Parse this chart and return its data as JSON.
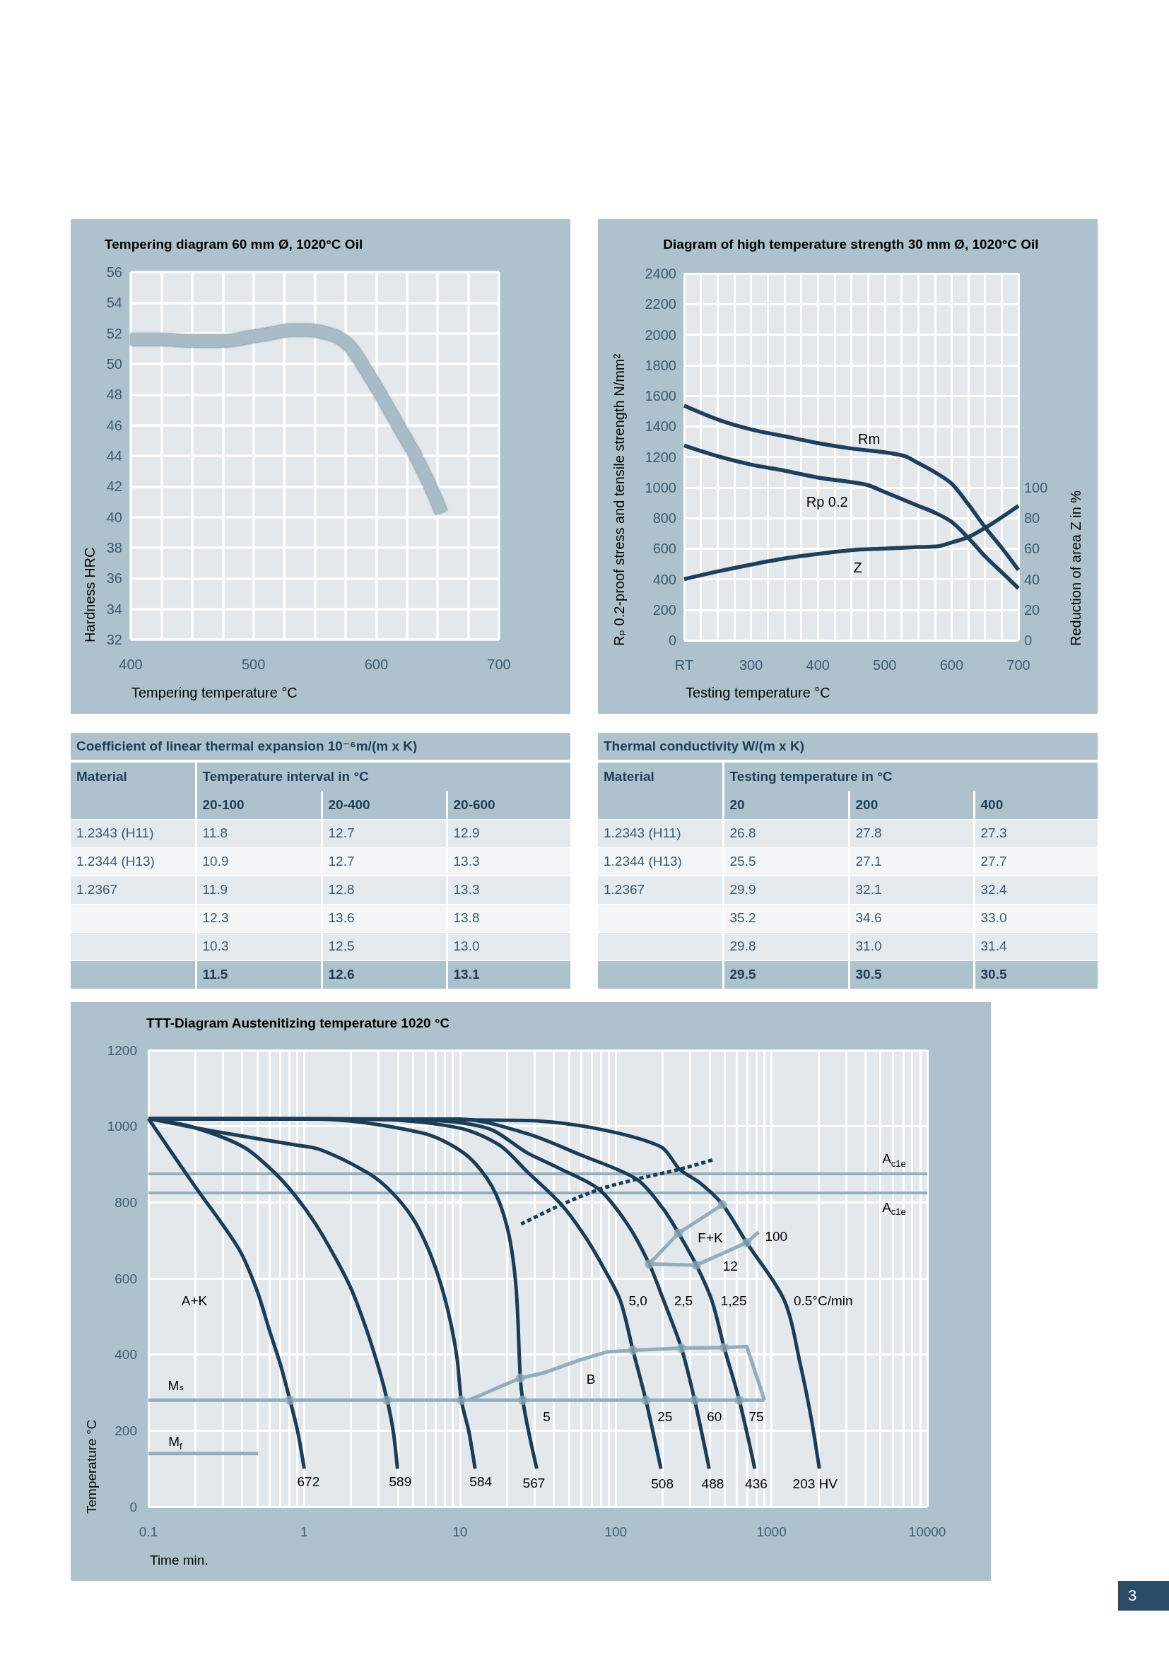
{
  "chart_data": [
    {
      "type": "line",
      "title": "Tempering diagram 60 mm Ø, 1020°C Oil",
      "xlabel": "Tempering temperature °C",
      "ylabel": "Hardness HRC",
      "x": [
        400,
        425,
        450,
        475,
        500,
        515,
        530,
        545,
        560,
        570,
        580,
        590,
        600,
        610,
        620,
        630,
        640,
        648,
        653
      ],
      "series": [
        {
          "color": "#a8bbc7",
          "values": [
            51.6,
            51.6,
            51.5,
            51.5,
            51.8,
            52.0,
            52.2,
            52.2,
            52.0,
            51.7,
            51.0,
            49.8,
            48.5,
            47.1,
            45.7,
            44.3,
            42.7,
            41.3,
            40.3
          ]
        }
      ],
      "xlim": [
        400,
        700
      ],
      "xticks": [
        400,
        {
          "value": 425,
          "label": null
        },
        {
          "value": 450,
          "label": null
        },
        {
          "value": 475,
          "label": null
        },
        500,
        {
          "value": 525,
          "label": null
        },
        {
          "value": 550,
          "label": null
        },
        {
          "value": 575,
          "label": null
        },
        600,
        {
          "value": 625,
          "label": null
        },
        {
          "value": 650,
          "label": null
        },
        {
          "value": 675,
          "label": null
        },
        700
      ],
      "ylim": [
        32,
        56
      ],
      "yticks": [
        32,
        34,
        36,
        38,
        40,
        42,
        44,
        46,
        48,
        50,
        52,
        54,
        56
      ],
      "grid": true,
      "marker": "none"
    },
    {
      "type": "line",
      "title": "Diagram of high temperature strength 30 mm Ø, 1020°C Oil",
      "xlabel": "Testing temperature °C",
      "ylabel": "Rₚ 0.2-proof stress and tensile strength N/mm²",
      "y2label": "Reduction of area Z in %",
      "series": [
        {
          "name": "Rm",
          "color": "#1f3f5a",
          "x": [
            200,
            250,
            300,
            350,
            400,
            450,
            500,
            530,
            550,
            575,
            600,
            625,
            650,
            675,
            700
          ],
          "values": [
            1535,
            1445,
            1380,
            1335,
            1290,
            1255,
            1230,
            1205,
            1160,
            1100,
            1025,
            890,
            740,
            605,
            460
          ]
        },
        {
          "name": "Rp 0.2",
          "color": "#1f3f5a",
          "x": [
            200,
            250,
            300,
            350,
            400,
            450,
            475,
            500,
            550,
            575,
            600,
            625,
            650,
            675,
            700
          ],
          "values": [
            1275,
            1205,
            1150,
            1110,
            1065,
            1035,
            1015,
            970,
            880,
            835,
            775,
            670,
            550,
            445,
            340
          ]
        },
        {
          "name": "Z",
          "color": "#1f3f5a",
          "axis": "y2",
          "x": [
            200,
            250,
            300,
            350,
            400,
            450,
            500,
            550,
            580,
            600,
            625,
            650,
            675,
            700
          ],
          "values": [
            40,
            45,
            49.5,
            53.5,
            56.5,
            59,
            60,
            61,
            61.5,
            64,
            67.5,
            73.5,
            80.5,
            88
          ]
        }
      ],
      "xlim": [
        200,
        700
      ],
      "xticks": [
        {
          "value": 200,
          "label": "RT"
        },
        {
          "value": 225,
          "label": null
        },
        {
          "value": 250,
          "label": null
        },
        {
          "value": 275,
          "label": null
        },
        300,
        {
          "value": 325,
          "label": null
        },
        {
          "value": 350,
          "label": null
        },
        {
          "value": 375,
          "label": null
        },
        400,
        {
          "value": 425,
          "label": null
        },
        {
          "value": 450,
          "label": null
        },
        {
          "value": 475,
          "label": null
        },
        500,
        {
          "value": 525,
          "label": null
        },
        {
          "value": 550,
          "label": null
        },
        {
          "value": 575,
          "label": null
        },
        600,
        {
          "value": 625,
          "label": null
        },
        {
          "value": 650,
          "label": null
        },
        {
          "value": 675,
          "label": null
        },
        700
      ],
      "ylim": [
        0,
        2400
      ],
      "yticks": [
        0,
        200,
        400,
        600,
        800,
        1000,
        1200,
        1400,
        1600,
        1800,
        2000,
        2200,
        2400
      ],
      "y2lim": [
        0,
        240
      ],
      "y2ticks": [
        0,
        20,
        40,
        60,
        80,
        100
      ],
      "grid": true,
      "marker": "none"
    },
    {
      "type": "other",
      "title": "Coefficient of linear thermal expansion 10⁻⁶m/(m x K)",
      "ylabel": "Material",
      "xlabel": "Temperature interval in °C",
      "categories": [
        "20-100",
        "20-400",
        "20-600"
      ],
      "y_categories": [
        "1.2343 (H11)",
        "1.2344 (H13)",
        "1.2367",
        null,
        null,
        null
      ],
      "cell_labels": [
        [
          "11.8",
          "12.7",
          "12.9"
        ],
        [
          "10.9",
          "12.7",
          "13.3"
        ],
        [
          "11.9",
          "12.8",
          "13.3"
        ],
        [
          "12.3",
          "13.6",
          "13.8"
        ],
        [
          "10.3",
          "12.5",
          "13.0"
        ],
        [
          "11.5",
          "12.6",
          "13.1"
        ]
      ]
    },
    {
      "type": "other",
      "title": "Thermal conductivity W/(m x K)",
      "ylabel": "Material",
      "xlabel": "Testing temperature in °C",
      "categories": [
        "20",
        "200",
        "400"
      ],
      "y_categories": [
        "1.2343 (H11)",
        "1.2344 (H13)",
        "1.2367",
        null,
        null,
        null
      ],
      "cell_labels": [
        [
          "26.8",
          "27.8",
          "27.3"
        ],
        [
          "25.5",
          "27.1",
          "27.7"
        ],
        [
          "29.9",
          "32.1",
          "32.4"
        ],
        [
          "35.2",
          "34.6",
          "33.0"
        ],
        [
          "29.8",
          "31.0",
          "31.4"
        ],
        [
          "29.5",
          "30.5",
          "30.5"
        ]
      ]
    },
    {
      "type": "line",
      "title": "TTT-Diagram Austenitizing temperature 1020 °C",
      "xlabel": "Time min.",
      "ylabel": "Temperature °C",
      "log": "x",
      "series": [
        {
          "color": "#93adbd",
          "x": [
            0.1,
            902
          ],
          "values": [
            280,
            280
          ]
        },
        {
          "color": "#93adbd",
          "x": [
            0.1,
            0.507
          ],
          "values": [
            140,
            140
          ]
        },
        {
          "color": "#93adbd",
          "x": [
            11.4,
            24.4,
            34,
            59.2,
            88,
            129,
            264,
            497,
            693,
            902
          ],
          "values": [
            280,
            338,
            351,
            386,
            407,
            411,
            417,
            418,
            421,
            280
          ]
        },
        {
          "color": "#93adbd",
          "x": [
            485,
            253,
            164,
            329,
            693,
            826
          ],
          "values": [
            794,
            719,
            638,
            635,
            694,
            722
          ]
        },
        {
          "color": "#1c3d57",
          "x": [
            0.1,
            0.192,
            0.38,
            0.495,
            0.598,
            0.707,
            0.81,
            0.908,
            1.0
          ],
          "values": [
            1020,
            851,
            678,
            571,
            464,
            371,
            280,
            198,
            100
          ]
        },
        {
          "color": "#1c3d57",
          "x": [
            0.1,
            0.192,
            0.41,
            0.645,
            0.874,
            1.18,
            1.6,
            2.01,
            2.52,
            3.04,
            3.41,
            3.73,
            3.97
          ],
          "values": [
            1020,
            998,
            945,
            878,
            818,
            744,
            651,
            571,
            464,
            358,
            280,
            198,
            100
          ]
        },
        {
          "color": "#1c3d57",
          "x": [
            0.1,
            0.281,
            0.874,
            1.28,
            2.62,
            3.68,
            4.98,
            6.25,
            7.55,
            8.78,
            9.62,
            10.2,
            11.4,
            12.5
          ],
          "values": [
            1020,
            985,
            951,
            938,
            875,
            825,
            758,
            678,
            584,
            478,
            385,
            280,
            198,
            100
          ]
        },
        {
          "color": "#1c3d57",
          "x": [
            0.1,
            1.21,
            5.78,
            10.8,
            16.0,
            20.2,
            22.9,
            24.4,
            25.3,
            27.5,
            31.1
          ],
          "values": [
            1020,
            1019,
            982,
            927,
            843,
            731,
            578,
            338,
            280,
            200,
            100
          ]
        },
        {
          "color": "#1c3d57",
          "x": [
            0.1,
            3,
            10,
            18,
            26.8,
            44.8,
            64.1,
            84.6,
            107,
            129,
            156,
            195
          ],
          "values": [
            1020,
            1018,
            995,
            950,
            882,
            794,
            708,
            624,
            542,
            411,
            280,
            100
          ]
        },
        {
          "color": "#1c3d57",
          "x": [
            0.1,
            5,
            15,
            26.8,
            43.1,
            78.2,
            120,
            164,
            203,
            264,
            321,
            398
          ],
          "values": [
            1020,
            1018,
            995,
            931,
            890,
            834,
            740,
            638,
            542,
            417,
            280,
            100
          ]
        },
        {
          "color": "#1c3d57",
          "x": [
            0.1,
            10,
            26.8,
            59.2,
            136,
            200,
            253,
            329,
            414,
            497,
            621,
            781
          ],
          "values": [
            1020,
            1019,
            981,
            925,
            861,
            785,
            719,
            635,
            542,
            418,
            280,
            100
          ]
        },
        {
          "color": "#1c3d57",
          "x": [
            0.1,
            26.8,
            75.2,
            195,
            257,
            350,
            485,
            693,
            1209,
            1535,
            1799,
            2028
          ],
          "values": [
            1020,
            1015,
            994,
            946,
            887,
            850,
            794,
            694,
            542,
            372,
            232,
            100
          ]
        },
        {
          "color": "#1c3d57",
          "line_style": "dotted",
          "x": [
            24.7,
            44.8,
            78.2,
            136,
            257,
            431
          ],
          "values": [
            743,
            794,
            834,
            861,
            887,
            913
          ]
        },
        {
          "type": "scatter",
          "marker": "circle",
          "color": "#8fa7b6",
          "x": [
            0.81,
            3.41,
            10.2,
            25.3,
            156,
            321,
            621,
            24.4,
            129,
            264,
            497,
            164,
            253,
            329,
            693,
            485
          ],
          "values": [
            280,
            280,
            280,
            280,
            280,
            280,
            280,
            338,
            411,
            417,
            418,
            638,
            719,
            635,
            694,
            794
          ]
        }
      ],
      "xlim": [
        0.1,
        10000
      ],
      "xticks": [
        0.1,
        {
          "value": 0.2,
          "label": null
        },
        {
          "value": 0.3,
          "label": null
        },
        {
          "value": 0.4,
          "label": null
        },
        {
          "value": 0.5,
          "label": null
        },
        {
          "value": 0.6,
          "label": null
        },
        {
          "value": 0.7,
          "label": null
        },
        {
          "value": 0.8,
          "label": null
        },
        {
          "value": 0.9,
          "label": null
        },
        1,
        {
          "value": 2,
          "label": null
        },
        {
          "value": 3,
          "label": null
        },
        {
          "value": 4,
          "label": null
        },
        {
          "value": 5,
          "label": null
        },
        {
          "value": 6,
          "label": null
        },
        {
          "value": 7,
          "label": null
        },
        {
          "value": 8,
          "label": null
        },
        {
          "value": 9,
          "label": null
        },
        10,
        {
          "value": 20,
          "label": null
        },
        {
          "value": 30,
          "label": null
        },
        {
          "value": 40,
          "label": null
        },
        {
          "value": 50,
          "label": null
        },
        {
          "value": 60,
          "label": null
        },
        {
          "value": 70,
          "label": null
        },
        {
          "value": 80,
          "label": null
        },
        {
          "value": 90,
          "label": null
        },
        100,
        {
          "value": 200,
          "label": null
        },
        {
          "value": 300,
          "label": null
        },
        {
          "value": 400,
          "label": null
        },
        {
          "value": 500,
          "label": null
        },
        {
          "value": 600,
          "label": null
        },
        {
          "value": 700,
          "label": null
        },
        {
          "value": 800,
          "label": null
        },
        {
          "value": 900,
          "label": null
        },
        1000,
        {
          "value": 2000,
          "label": null
        },
        {
          "value": 3000,
          "label": null
        },
        {
          "value": 4000,
          "label": null
        },
        {
          "value": 5000,
          "label": null
        },
        {
          "value": 6000,
          "label": null
        },
        {
          "value": 7000,
          "label": null
        },
        {
          "value": 8000,
          "label": null
        },
        {
          "value": 9000,
          "label": null
        },
        10000
      ],
      "ylim": [
        0,
        1200
      ],
      "yticks": [
        0,
        200,
        400,
        600,
        800,
        1000,
        1200
      ],
      "grid": true,
      "marker": "none",
      "ref_lines": [
        {
          "axis": "y",
          "value": 875,
          "label": "A$_{c1e}$",
          "color": "#96afbf"
        },
        {
          "axis": "y",
          "value": 826,
          "label": "A$_{c1e}$",
          "color": "#96afbf"
        }
      ],
      "annotations": [
        {
          "text": "Mₛ",
          "x": 0.1,
          "y": 280
        },
        {
          "text": "M$_{f}$",
          "x": 0.1,
          "y": 140
        },
        {
          "text": "672",
          "x": 1.0,
          "y": 100
        },
        {
          "text": "589",
          "x": 3.97,
          "y": 100
        },
        {
          "text": "584",
          "x": 12.5,
          "y": 100
        },
        {
          "text": "567",
          "x": 31.1,
          "y": 100
        },
        {
          "text": "508",
          "x": 195,
          "y": 100
        },
        {
          "text": "488",
          "x": 398,
          "y": 100
        },
        {
          "text": "436",
          "x": 781,
          "y": 100
        },
        {
          "text": "203 HV",
          "x": 2028,
          "y": 100
        },
        {
          "text": "5",
          "x": 25.3,
          "y": 280
        },
        {
          "text": "25",
          "x": 156,
          "y": 280
        },
        {
          "text": "60",
          "x": 321,
          "y": 280
        },
        {
          "text": "75",
          "x": 621,
          "y": 280
        },
        {
          "text": "5,0",
          "x": 107,
          "y": 542
        },
        {
          "text": "2,5",
          "x": 203,
          "y": 542
        },
        {
          "text": "1,25",
          "x": 414,
          "y": 542
        },
        {
          "text": "0.5°C/min",
          "x": 1209,
          "y": 542
        },
        {
          "text": "12",
          "x": 329,
          "y": 635
        },
        {
          "text": "100",
          "x": 826,
          "y": 722
        },
        "A+K",
        "F+K",
        "B",
        "3"
      ]
    }
  ]
}
